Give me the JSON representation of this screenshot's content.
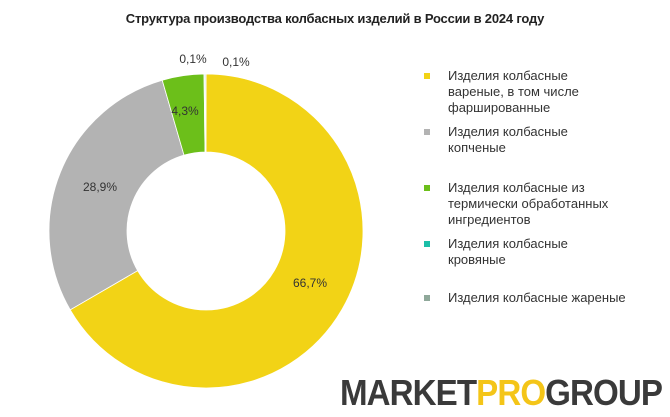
{
  "chart_data": {
    "type": "pie",
    "variant": "donut",
    "title": "Структура производства колбасных изделий в России в 2024 году",
    "slices": [
      {
        "label": "Изделия колбасные вареные, в том числе фаршированные",
        "value": 66.7,
        "display": "66,7%",
        "color": "#f2d316"
      },
      {
        "label": "Изделия колбасные копченые",
        "value": 28.9,
        "display": "28,9%",
        "color": "#b3b3b3"
      },
      {
        "label": "Изделия колбасные из термически обработанных ингредиентов",
        "value": 4.3,
        "display": "4,3%",
        "color": "#6cbf1a"
      },
      {
        "label": "Изделия колбасные кровяные",
        "value": 0.1,
        "display": "0,1%",
        "color": "#1bbfa8"
      },
      {
        "label": "Изделия колбасные жареные",
        "value": 0.1,
        "display": "0,1%",
        "color": "#8fa89a"
      }
    ],
    "legend_position": "right"
  },
  "logo": {
    "part1": "MARKET",
    "part2": "PRO",
    "part3": "GROUP"
  }
}
